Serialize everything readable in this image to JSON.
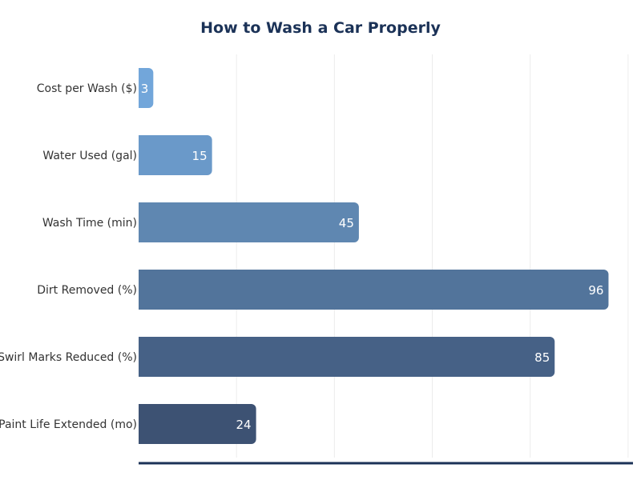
{
  "chart_data": {
    "type": "bar",
    "orientation": "horizontal",
    "title": "How to Wash a Car Properly",
    "categories": [
      "Cost per Wash ($)",
      "Water Used (gal)",
      "Wash Time (min)",
      "Dirt Removed (%)",
      "Swirl Marks Reduced (%)",
      "Paint Life Extended (mo)"
    ],
    "values": [
      3,
      15,
      45,
      96,
      85,
      24
    ],
    "colors": [
      "#72a6da",
      "#6a99c9",
      "#5f87b1",
      "#52749b",
      "#466186",
      "#3d5273"
    ],
    "xlabel": "",
    "ylabel": "",
    "xlim": [
      0,
      101
    ],
    "grid": true,
    "grid_step": 20,
    "axis_color": "#1b3257"
  }
}
